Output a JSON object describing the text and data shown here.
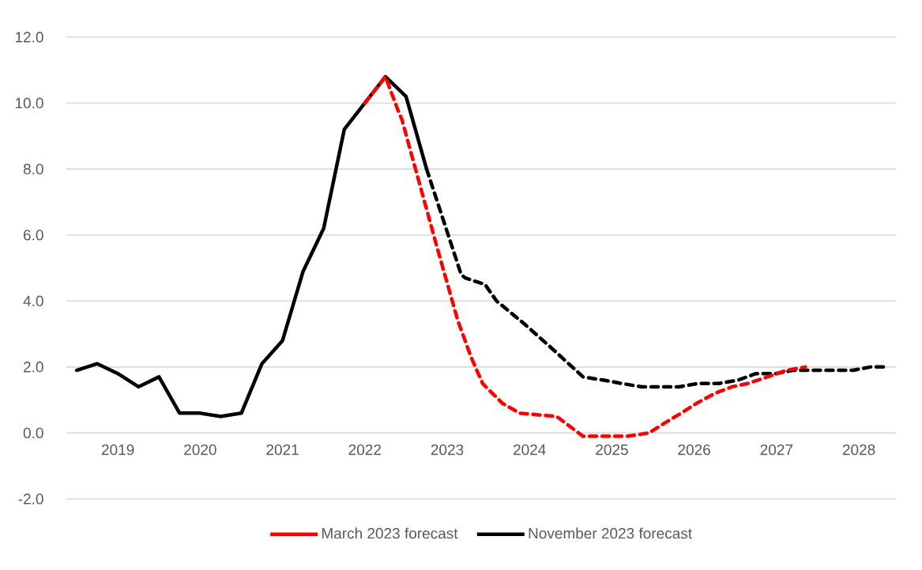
{
  "chart_data": {
    "type": "line",
    "xlim": [
      2018.875,
      2028.95
    ],
    "xticks": [
      {
        "value": 2019.5,
        "label": "2019"
      },
      {
        "value": 2020.5,
        "label": "2020"
      },
      {
        "value": 2021.5,
        "label": "2021"
      },
      {
        "value": 2022.5,
        "label": "2022"
      },
      {
        "value": 2023.5,
        "label": "2023"
      },
      {
        "value": 2024.5,
        "label": "2024"
      },
      {
        "value": 2025.5,
        "label": "2025"
      },
      {
        "value": 2026.5,
        "label": "2026"
      },
      {
        "value": 2027.5,
        "label": "2027"
      },
      {
        "value": 2028.5,
        "label": "2028"
      }
    ],
    "ylim": [
      -2,
      12
    ],
    "yticks": [
      {
        "value": -2,
        "label": "-2.0"
      },
      {
        "value": 0,
        "label": "0.0"
      },
      {
        "value": 2,
        "label": "2.0"
      },
      {
        "value": 4,
        "label": "4.0"
      },
      {
        "value": 6,
        "label": "6.0"
      },
      {
        "value": 8,
        "label": "8.0"
      },
      {
        "value": 10,
        "label": "10.0"
      },
      {
        "value": 12,
        "label": "12.0"
      }
    ],
    "grid": "y",
    "legend": "bottom",
    "series": [
      {
        "name": "March 2023 forecast",
        "color": "#ff0000",
        "line_style": "dashed",
        "x": [
          2022.5,
          2022.75,
          2022.9,
          2022.95,
          2023.38,
          2023.63,
          2023.79,
          2023.93,
          2024.17,
          2024.38,
          2024.83,
          2025.15,
          2025.42,
          2025.69,
          2025.95,
          2026.14,
          2026.34,
          2026.53,
          2026.75,
          2026.96,
          2027.15,
          2027.39,
          2027.62,
          2027.85
        ],
        "values": [
          10.0,
          10.8,
          9.8,
          9.5,
          5.6,
          3.4,
          2.3,
          1.5,
          0.9,
          0.6,
          0.5,
          -0.1,
          -0.1,
          -0.1,
          0.0,
          0.3,
          0.6,
          0.9,
          1.2,
          1.4,
          1.5,
          1.7,
          1.9,
          2.0
        ]
      },
      {
        "name": "November 2023 forecast",
        "color": "#000000",
        "line_style": "solid",
        "x": [
          2019.0,
          2019.25,
          2019.5,
          2019.75,
          2020.0,
          2020.25,
          2020.5,
          2020.75,
          2021.0,
          2021.25,
          2021.5,
          2021.75,
          2022.0,
          2022.25,
          2022.5,
          2022.75,
          2023.0,
          2023.25
        ],
        "values": [
          1.9,
          2.1,
          1.8,
          1.4,
          1.7,
          0.6,
          0.6,
          0.5,
          0.6,
          2.1,
          2.8,
          4.9,
          6.2,
          9.2,
          10.0,
          10.8,
          10.2,
          8.0
        ]
      },
      {
        "color": "#000000",
        "line_style": "dashed",
        "x": [
          2023.25,
          2023.67,
          2023.72,
          2023.96,
          2024.1,
          2024.44,
          2024.8,
          2025.15,
          2025.4,
          2025.62,
          2025.86,
          2026.07,
          2026.32,
          2026.55,
          2026.8,
          2027.03,
          2027.25,
          2027.49,
          2027.7,
          2027.95,
          2028.18,
          2028.43,
          2028.64,
          2028.8
        ],
        "values": [
          8.0,
          4.8,
          4.7,
          4.5,
          4.0,
          3.3,
          2.5,
          1.7,
          1.6,
          1.5,
          1.4,
          1.4,
          1.4,
          1.5,
          1.5,
          1.6,
          1.8,
          1.8,
          1.9,
          1.9,
          1.9,
          1.9,
          2.0,
          2.0
        ]
      }
    ]
  }
}
